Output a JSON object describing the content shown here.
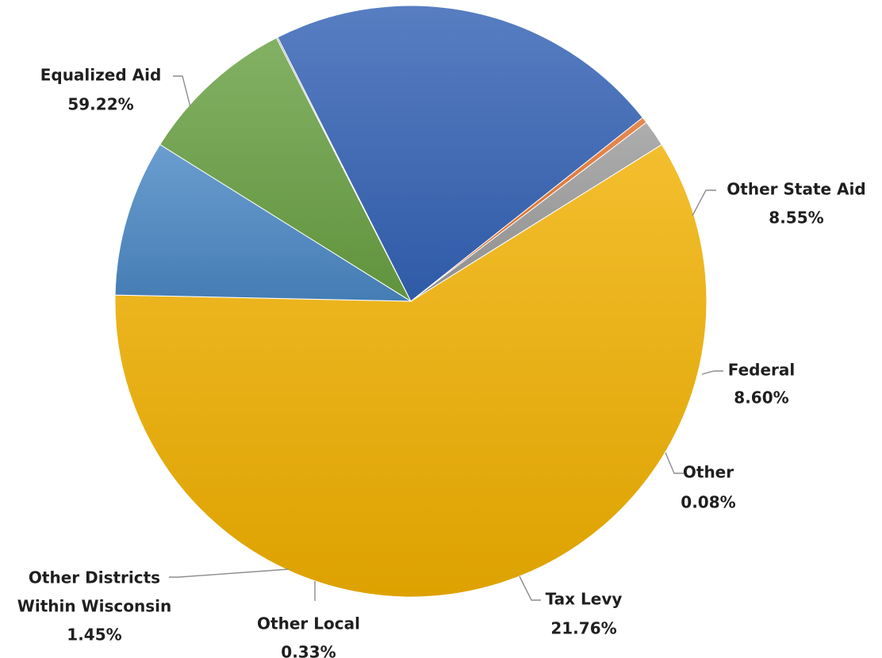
{
  "chart_data": {
    "type": "pie",
    "title": "",
    "slices": [
      {
        "name": "Equalized Aid",
        "value": 59.22,
        "label": "59.22%",
        "color": "#F0B000"
      },
      {
        "name": "Other State Aid",
        "value": 8.55,
        "label": "8.55%",
        "color": "#4A88C4"
      },
      {
        "name": "Federal",
        "value": 8.6,
        "label": "8.60%",
        "color": "#68A042"
      },
      {
        "name": "Other",
        "value": 0.08,
        "label": "0.08%",
        "color": "#7F7F7F"
      },
      {
        "name": "Tax Levy",
        "value": 21.76,
        "label": "21.76%",
        "color": "#3362B4"
      },
      {
        "name": "Other Local",
        "value": 0.33,
        "label": "0.33%",
        "color": "#E0702A"
      },
      {
        "name": "Other Districts Within Wisconsin",
        "name_lines": [
          "Other Districts",
          "Within Wisconsin"
        ],
        "value": 1.45,
        "label": "1.45%",
        "color": "#9B9B9B"
      }
    ]
  }
}
